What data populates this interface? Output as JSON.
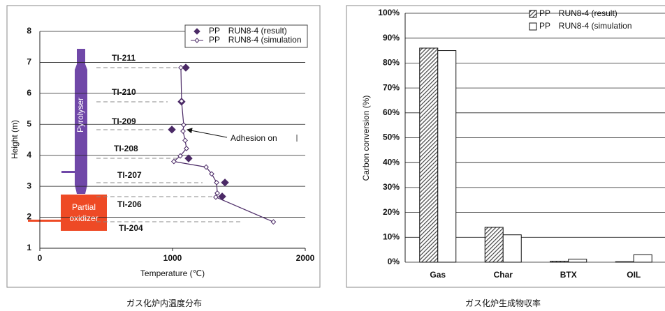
{
  "chart_data": [
    {
      "type": "scatter",
      "caption": "ガス化炉内温度分布",
      "x_label": "Temperature (℃)",
      "y_label": "Height (m)",
      "xlim": [
        0,
        2000
      ],
      "xticks": [
        0,
        1000,
        2000
      ],
      "ylim": [
        1,
        8
      ],
      "yticks": [
        1,
        2,
        3,
        4,
        5,
        6,
        7,
        8
      ],
      "grid": true,
      "legend": "upper right",
      "series": [
        {
          "name": "PP　RUN8-4 (result)",
          "color": "#4b2a66",
          "marker": "diamond",
          "filled": true,
          "line": false,
          "x": [
            1100,
            1068,
            995,
            1121,
            1395,
            1374
          ],
          "values": [
            6.83,
            5.73,
            4.83,
            3.9,
            3.12,
            2.67
          ]
        },
        {
          "name": "PP　RUN8-4 (simulation",
          "color": "#4b2a66",
          "marker": "diamond",
          "filled": false,
          "line": true,
          "x": [
            1063,
            1068,
            1084,
            1079,
            1095,
            1105,
            1058,
            1010,
            1253,
            1295,
            1332,
            1337,
            1326,
            1760
          ],
          "values": [
            6.83,
            5.75,
            4.98,
            4.78,
            4.48,
            4.22,
            3.98,
            3.8,
            3.62,
            3.4,
            3.12,
            2.78,
            2.65,
            1.85
          ]
        }
      ],
      "annotations": [
        "TI-211",
        "TI-210",
        "TI-209",
        "TI-208",
        "TI-207",
        "TI-206",
        "TI-204",
        "Adhesion on",
        "Pyrolyser",
        "Partial",
        "oxidizer"
      ]
    },
    {
      "type": "bar",
      "caption": "ガス化炉生成物収率",
      "y_label": "Carbon conversion  (%)",
      "categories": [
        "Gas",
        "Char",
        "BTX",
        "OIL"
      ],
      "ylim": [
        0,
        100
      ],
      "yticks": [
        {
          "value": 0,
          "label": "0%"
        },
        {
          "value": 10,
          "label": "10%"
        },
        {
          "value": 20,
          "label": "20%"
        },
        {
          "value": 30,
          "label": "30%"
        },
        {
          "value": 40,
          "label": "40%"
        },
        {
          "value": 50,
          "label": "50%"
        },
        {
          "value": 60,
          "label": "60%"
        },
        {
          "value": 70,
          "label": "70%"
        },
        {
          "value": 80,
          "label": "80%"
        },
        {
          "value": 90,
          "label": "90%"
        },
        {
          "value": 100,
          "label": "100%"
        }
      ],
      "grid": true,
      "legend": "upper right",
      "series": [
        {
          "name": "PP　RUN8-4 (result)",
          "color": "#444444",
          "hatch": true,
          "values": [
            86,
            14,
            0.4,
            0.2
          ]
        },
        {
          "name": "PP　RUN8-4 (simulation",
          "color": "#ffffff",
          "hatch": false,
          "values": [
            85,
            11,
            1.2,
            3
          ]
        }
      ]
    }
  ]
}
